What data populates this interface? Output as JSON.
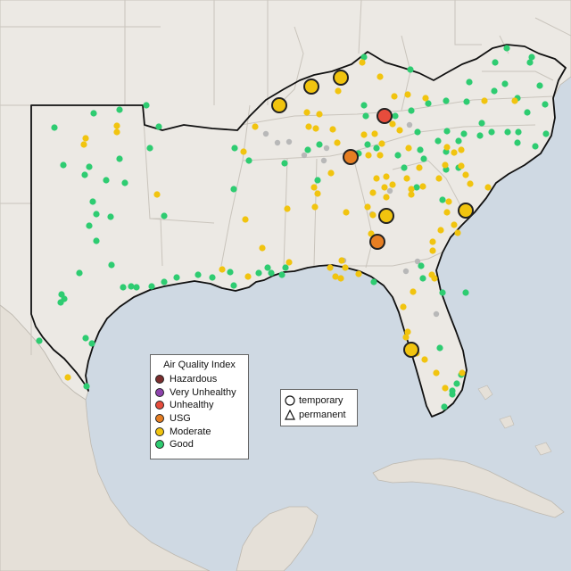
{
  "colors": {
    "water": "#cfd9e3",
    "land": "#ece9e4",
    "land_south": "#e7e3dc",
    "border": "#c9c4bc",
    "highlight_border": "#111111"
  },
  "legend": {
    "title": "Air Quality Index",
    "items": [
      {
        "label": "Hazardous",
        "color": "#7b2e2e"
      },
      {
        "label": "Very Unhealthy",
        "color": "#8e44ad"
      },
      {
        "label": "Unhealthy",
        "color": "#e74c3c"
      },
      {
        "label": "USG",
        "color": "#e67e22"
      },
      {
        "label": "Moderate",
        "color": "#f1c40f"
      },
      {
        "label": "Good",
        "color": "#2ecc71"
      }
    ]
  },
  "type_legend": {
    "items": [
      {
        "label": "temporary",
        "icon": "circle-icon"
      },
      {
        "label": "permanent",
        "icon": "triangle-icon"
      }
    ]
  },
  "monitors": {
    "good": [
      [
        61,
        143
      ],
      [
        105,
        127
      ],
      [
        134,
        123
      ],
      [
        164,
        118
      ],
      [
        178,
        142
      ],
      [
        168,
        166
      ],
      [
        134,
        178
      ],
      [
        100,
        187
      ],
      [
        71,
        185
      ],
      [
        95,
        196
      ],
      [
        119,
        202
      ],
      [
        140,
        205
      ],
      [
        104,
        226
      ],
      [
        108,
        240
      ],
      [
        100,
        253
      ],
      [
        124,
        243
      ],
      [
        184,
        242
      ],
      [
        108,
        270
      ],
      [
        125,
        297
      ],
      [
        89,
        306
      ],
      [
        69,
        330
      ],
      [
        72,
        335
      ],
      [
        68,
        339
      ],
      [
        138,
        322
      ],
      [
        147,
        321
      ],
      [
        153,
        322
      ],
      [
        170,
        321
      ],
      [
        184,
        316
      ],
      [
        198,
        311
      ],
      [
        222,
        308
      ],
      [
        238,
        311
      ],
      [
        258,
        305
      ],
      [
        262,
        320
      ],
      [
        290,
        306
      ],
      [
        304,
        306
      ],
      [
        316,
        308
      ],
      [
        300,
        300
      ],
      [
        320,
        300
      ],
      [
        263,
        166
      ],
      [
        279,
        180
      ],
      [
        262,
        212
      ],
      [
        319,
        183
      ],
      [
        356,
        202
      ],
      [
        345,
        168
      ],
      [
        358,
        162
      ],
      [
        402,
        172
      ],
      [
        412,
        162
      ],
      [
        422,
        166
      ],
      [
        410,
        130
      ],
      [
        408,
        118
      ],
      [
        408,
        64
      ],
      [
        443,
        130
      ],
      [
        461,
        124
      ],
      [
        460,
        78
      ],
      [
        480,
        116
      ],
      [
        500,
        113
      ],
      [
        501,
        147
      ],
      [
        514,
        158
      ],
      [
        520,
        150
      ],
      [
        538,
        152
      ],
      [
        551,
        148
      ],
      [
        569,
        148
      ],
      [
        540,
        138
      ],
      [
        554,
        102
      ],
      [
        566,
        94
      ],
      [
        580,
        110
      ],
      [
        568,
        54
      ],
      [
        581,
        148
      ],
      [
        580,
        160
      ],
      [
        600,
        164
      ],
      [
        591,
        126
      ],
      [
        594,
        70
      ],
      [
        596,
        64
      ],
      [
        605,
        96
      ],
      [
        611,
        117
      ],
      [
        612,
        150
      ],
      [
        468,
        148
      ],
      [
        471,
        168
      ],
      [
        491,
        158
      ],
      [
        500,
        170
      ],
      [
        475,
        178
      ],
      [
        500,
        190
      ],
      [
        453,
        188
      ],
      [
        467,
        210
      ],
      [
        446,
        174
      ],
      [
        514,
        188
      ],
      [
        496,
        224
      ],
      [
        419,
        316
      ],
      [
        474,
        312
      ],
      [
        496,
        328
      ],
      [
        522,
        328
      ],
      [
        44,
        382
      ],
      [
        96,
        379
      ],
      [
        103,
        385
      ],
      [
        97,
        433
      ],
      [
        498,
        456
      ],
      [
        507,
        442
      ],
      [
        512,
        430
      ],
      [
        517,
        420
      ],
      [
        507,
        438
      ],
      [
        472,
        298
      ],
      [
        493,
        390
      ],
      [
        523,
        114
      ],
      [
        526,
        92
      ],
      [
        555,
        70
      ]
    ],
    "moderate": [
      [
        94,
        162
      ],
      [
        96,
        155
      ],
      [
        131,
        141
      ],
      [
        131,
        148
      ],
      [
        176,
        218
      ],
      [
        273,
        170
      ],
      [
        286,
        142
      ],
      [
        275,
        246
      ],
      [
        294,
        278
      ],
      [
        324,
        294
      ],
      [
        346,
        142
      ],
      [
        344,
        126
      ],
      [
        358,
        128
      ],
      [
        354,
        144
      ],
      [
        352,
        210
      ],
      [
        356,
        217
      ],
      [
        353,
        232
      ],
      [
        371,
        194
      ],
      [
        378,
        160
      ],
      [
        373,
        145
      ],
      [
        379,
        102
      ],
      [
        406,
        70
      ],
      [
        426,
        86
      ],
      [
        442,
        108
      ],
      [
        457,
        106
      ],
      [
        477,
        110
      ],
      [
        408,
        151
      ],
      [
        413,
        174
      ],
      [
        422,
        200
      ],
      [
        433,
        198
      ],
      [
        431,
        210
      ],
      [
        433,
        221
      ],
      [
        440,
        207
      ],
      [
        418,
        216
      ],
      [
        458,
        166
      ],
      [
        461,
        212
      ],
      [
        461,
        218
      ],
      [
        474,
        209
      ],
      [
        492,
        200
      ],
      [
        499,
        185
      ],
      [
        501,
        165
      ],
      [
        509,
        171
      ],
      [
        517,
        168
      ],
      [
        503,
        226
      ],
      [
        513,
        261
      ],
      [
        494,
        258
      ],
      [
        485,
        271
      ],
      [
        485,
        281
      ],
      [
        484,
        308
      ],
      [
        487,
        312
      ],
      [
        452,
        344
      ],
      [
        463,
        327
      ],
      [
        455,
        378
      ],
      [
        457,
        372
      ],
      [
        461,
        395
      ],
      [
        467,
        396
      ],
      [
        476,
        403
      ],
      [
        489,
        418
      ],
      [
        499,
        435
      ],
      [
        518,
        418
      ],
      [
        383,
        292
      ],
      [
        376,
        310
      ],
      [
        382,
        312
      ],
      [
        322,
        234
      ],
      [
        249,
        302
      ],
      [
        278,
        310
      ],
      [
        76,
        423
      ],
      [
        418,
        241
      ],
      [
        416,
        262
      ],
      [
        388,
        238
      ],
      [
        412,
        232
      ],
      [
        402,
        307
      ],
      [
        387,
        300
      ],
      [
        370,
        300
      ],
      [
        456,
        200
      ],
      [
        470,
        188
      ],
      [
        426,
        174
      ],
      [
        522,
        196
      ],
      [
        547,
        210
      ],
      [
        527,
        206
      ],
      [
        517,
        186
      ],
      [
        501,
        238
      ],
      [
        509,
        252
      ],
      [
        543,
        113
      ],
      [
        577,
        113
      ],
      [
        440,
        139
      ],
      [
        448,
        146
      ],
      [
        420,
        150
      ],
      [
        428,
        161
      ]
    ],
    "grey": [
      [
        298,
        150
      ],
      [
        311,
        160
      ],
      [
        341,
        174
      ],
      [
        324,
        159
      ],
      [
        363,
        180
      ],
      [
        366,
        166
      ],
      [
        459,
        140
      ],
      [
        437,
        214
      ],
      [
        417,
        240
      ],
      [
        455,
        304
      ],
      [
        468,
        293
      ],
      [
        489,
        352
      ],
      [
        385,
        292
      ]
    ],
    "big_moderate": [
      [
        313,
        118
      ],
      [
        349,
        97
      ],
      [
        382,
        87
      ],
      [
        461,
        392
      ],
      [
        433,
        242
      ],
      [
        522,
        236
      ]
    ],
    "big_usg": [
      [
        393,
        176
      ],
      [
        423,
        271
      ]
    ],
    "big_unhealthy": [
      [
        431,
        130
      ]
    ]
  }
}
